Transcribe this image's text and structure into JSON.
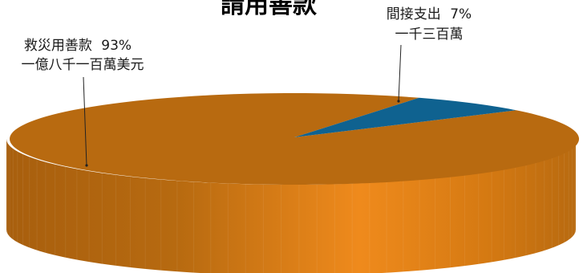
{
  "chart_data": {
    "type": "pie",
    "title": "請用善款",
    "series": [
      {
        "name": "",
        "slices": [
          {
            "label": "救災用善款",
            "percent": 93,
            "amount": "一億八千一百萬美元",
            "color": "#b86a10"
          },
          {
            "label": "間接支出",
            "percent": 7,
            "amount": "一千三百萬",
            "color": "#0f6290"
          }
        ]
      }
    ],
    "legend": "none"
  }
}
